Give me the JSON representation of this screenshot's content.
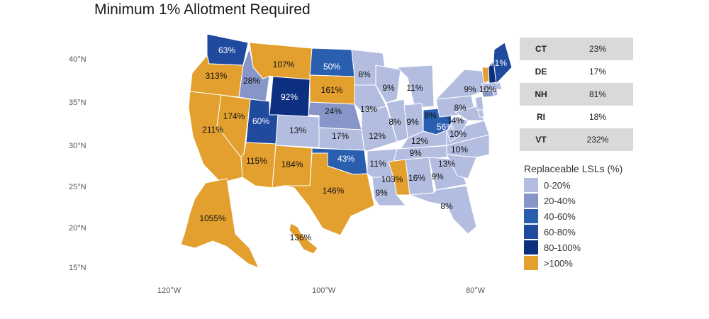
{
  "title": "Minimum 1% Allotment Required",
  "lat_ticks": [
    "40°N",
    "35°N",
    "30°N",
    "25°N",
    "20°N",
    "15°N"
  ],
  "lon_ticks": [
    "120°W",
    "100°W",
    "80°W"
  ],
  "small_states": [
    {
      "state": "CT",
      "value": "23%"
    },
    {
      "state": "DE",
      "value": "17%"
    },
    {
      "state": "NH",
      "value": "81%"
    },
    {
      "state": "RI",
      "value": "18%"
    },
    {
      "state": "VT",
      "value": "232%"
    }
  ],
  "legend": {
    "title": "Replaceable LSLs (%)",
    "items": [
      {
        "label": "0-20%",
        "color": "#b3bde0"
      },
      {
        "label": "20-40%",
        "color": "#8895c8"
      },
      {
        "label": "40-60%",
        "color": "#2a5fb0"
      },
      {
        "label": "60-80%",
        "color": "#1f4a9e"
      },
      {
        "label": "80-100%",
        "color": "#0c2f80"
      },
      {
        "label": ">100%",
        "color": "#e3a02e"
      }
    ]
  },
  "state_labels": {
    "WA": "63%",
    "OR": "313%",
    "ID": "28%",
    "MT": "107%",
    "ND": "50%",
    "WY": "92%",
    "SD": "161%",
    "CA": "211%",
    "NV": "174%",
    "UT": "60%",
    "CO": "13%",
    "NE": "24%",
    "KS": "17%",
    "AZ": "115%",
    "NM": "184%",
    "OK": "43%",
    "TX": "146%",
    "AK": "1055%",
    "HI": "136%",
    "MN": "8%",
    "IA": "13%",
    "MO": "12%",
    "AR": "11%",
    "LA": "9%",
    "WI": "9%",
    "MI": "11%",
    "IL": "8%",
    "IN": "9%",
    "OH": "56%",
    "KY": "12%",
    "TN": "9%",
    "MS": "103%",
    "AL": "16%",
    "GA": "9%",
    "FL": "8%",
    "SC": "13%",
    "NC": "10%",
    "VA": "10%",
    "WV": "14%",
    "PA": "8%",
    "NY": "9%",
    "MD": "8%",
    "ME": "71%",
    "MA": "10%"
  },
  "state_values": {
    "WA": 63,
    "OR": 313,
    "ID": 28,
    "MT": 107,
    "ND": 50,
    "WY": 92,
    "SD": 161,
    "CA": 211,
    "NV": 174,
    "UT": 60,
    "CO": 13,
    "NE": 24,
    "KS": 17,
    "AZ": 115,
    "NM": 184,
    "OK": 43,
    "TX": 146,
    "AK": 1055,
    "HI": 136,
    "MN": 8,
    "IA": 13,
    "MO": 12,
    "AR": 11,
    "LA": 9,
    "WI": 9,
    "MI": 11,
    "IL": 8,
    "IN": 9,
    "OH": 56,
    "KY": 12,
    "TN": 9,
    "MS": 103,
    "AL": 16,
    "GA": 9,
    "FL": 8,
    "SC": 13,
    "NC": 10,
    "VA": 10,
    "WV": 14,
    "PA": 8,
    "NY": 9,
    "MD": 8,
    "ME": 71,
    "MA": 10,
    "CT": 23,
    "DE": 17,
    "NH": 81,
    "RI": 18,
    "VT": 232
  }
}
